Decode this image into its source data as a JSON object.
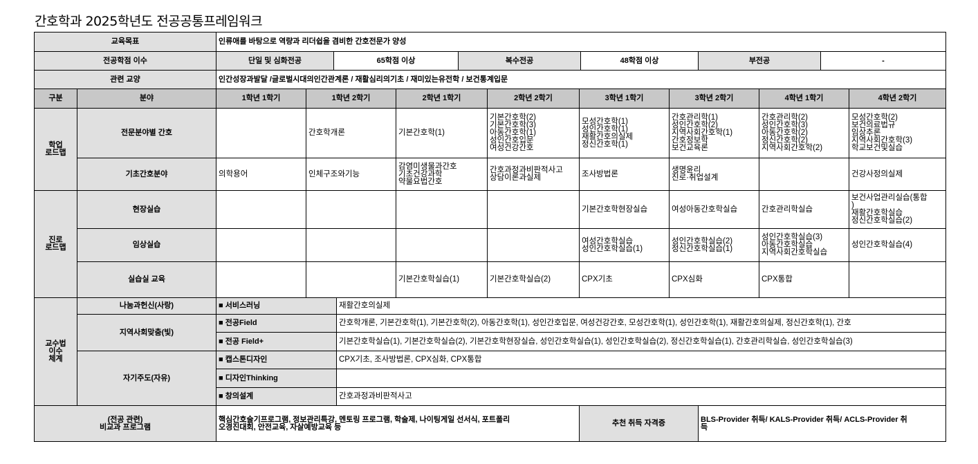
{
  "title": "간호학과 2025학년도 전공공통프레임워크",
  "goal": {
    "label": "교육목표",
    "text": "인류애를 바탕으로 역량과 리더쉽을 겸비한 간호전문가 양성"
  },
  "credits": {
    "label": "전공학점 이수",
    "single_label": "단일 및 심화전공",
    "single_value": "65학점 이상",
    "double_label": "복수전공",
    "double_value": "48학점 이상",
    "minor_label": "부전공",
    "minor_value": "-"
  },
  "liberal": {
    "label": "관련 교양",
    "text": "인간성장과발달 /글로벌시대의인간관계론 / 재활심리의기초 / 재미있는유전학 / 보건통계입문"
  },
  "header": {
    "category": "구분",
    "field": "분야",
    "semesters": [
      "1학년 1학기",
      "1학년 2학기",
      "2학년 1학기",
      "2학년 2학기",
      "3학년 1학기",
      "3학년 2학기",
      "4학년 1학기",
      "4학년 2학기"
    ]
  },
  "academic": {
    "label": "학업\n로드맵",
    "rows": [
      {
        "field": "전문분야별 간호",
        "cells": [
          "",
          "간호학개론",
          "기본간호학(1)",
          "기본간호학(2)\n기본간호학(3)\n아동간호학(1)\n성인간호입문\n여성건강간호",
          "모성간호학(1)\n성인간호학(1)\n재활간호의실제\n정신간호학(1)",
          "간호관리학(1)\n성인간호학(2)\n지역사회간호학(1)\n간호정보학\n보건교육론",
          "간호관리학(2)\n성인간호학(3)\n아동간호학(2)\n정신간호학(2)\n지역사회간호학(2)",
          "모성간호학(2)\n보건의료법규\n임상추론\n지역사회간호학(3)\n학교보건및실습"
        ]
      },
      {
        "field": "기초간호분야",
        "cells": [
          "의학용어",
          "인체구조와기능",
          "감염미생물과간호\n기초건강과학\n약물요법간호",
          "간호과정과비판적사고\n상담이론과실제",
          "조사방법론",
          "생명윤리\n진로·취업설계",
          "",
          "건강사정의실제"
        ]
      }
    ]
  },
  "career": {
    "label": "진로\n로드맵",
    "rows": [
      {
        "field": "현장실습",
        "cells": [
          "",
          "",
          "",
          "",
          "기본간호학현장실습",
          "여성아동간호학실습",
          "간호관리학실습",
          "보건사업관리실습(통합\n)\n재활간호학실습\n정신간호학실습(2)"
        ]
      },
      {
        "field": "임상실습",
        "cells": [
          "",
          "",
          "",
          "",
          "여성간호학실습\n성인간호학실습(1)",
          "성인간호학실습(2)\n정신간호학실습(1)",
          "성인간호학실습(3)\n아동간호학실습\n지역사회간호학실습",
          "성인간호학실습(4)"
        ]
      },
      {
        "field": "실습실 교육",
        "cells": [
          "",
          "",
          "기본간호학실습(1)",
          "기본간호학실습(2)",
          "CPX기초",
          "CPX심화",
          "CPX통합",
          ""
        ]
      }
    ]
  },
  "teaching": {
    "label": "교수법\n이수\n체계",
    "categories": [
      "나눔과헌신(사랑)",
      "지역사회맞춤(빛)",
      "자기주도(자유)"
    ],
    "items": [
      {
        "type": "■ 서비스러닝",
        "courses": "재활간호의실제"
      },
      {
        "type": "■ 전공Field",
        "courses": "간호학개론, 기본간호학(1), 기본간호학(2), 아동간호학(1), 성인간호입문, 여성건강간호, 모성간호학(1), 성인간호학(1), 재활간호의실제, 정신간호학(1), 간호"
      },
      {
        "type": "■ 전공 Field+",
        "courses": "기본간호학실습(1), 기본간호학실습(2), 기본간호학현장실습, 성인간호학실습(1), 성인간호학실습(2), 정신간호학실습(1), 간호관리학실습, 성인간호학실습(3)"
      },
      {
        "type": "■ 캡스톤디자인",
        "courses": "CPX기초, 조사방법론, CPX심화, CPX통합"
      },
      {
        "type": "■ 디자인Thinking",
        "courses": ""
      },
      {
        "type": "■ 창의설계",
        "courses": "간호과정과비판적사고"
      }
    ]
  },
  "extra": {
    "label": "(전공 관련)\n비교과 프로그램",
    "text": "핵심간호술기프로그램, 정보관리특강, 멘토링 프로그램, 학술제, 나이팅게일 선서식, 포트폴리\n오경진대회, 안전교육, 자살예방교육 등",
    "cert_label": "추천 취득 자격증",
    "cert_text": "BLS-Provider 취득/ KALS-Provider 취득/ ACLS-Provider 취\n득"
  }
}
